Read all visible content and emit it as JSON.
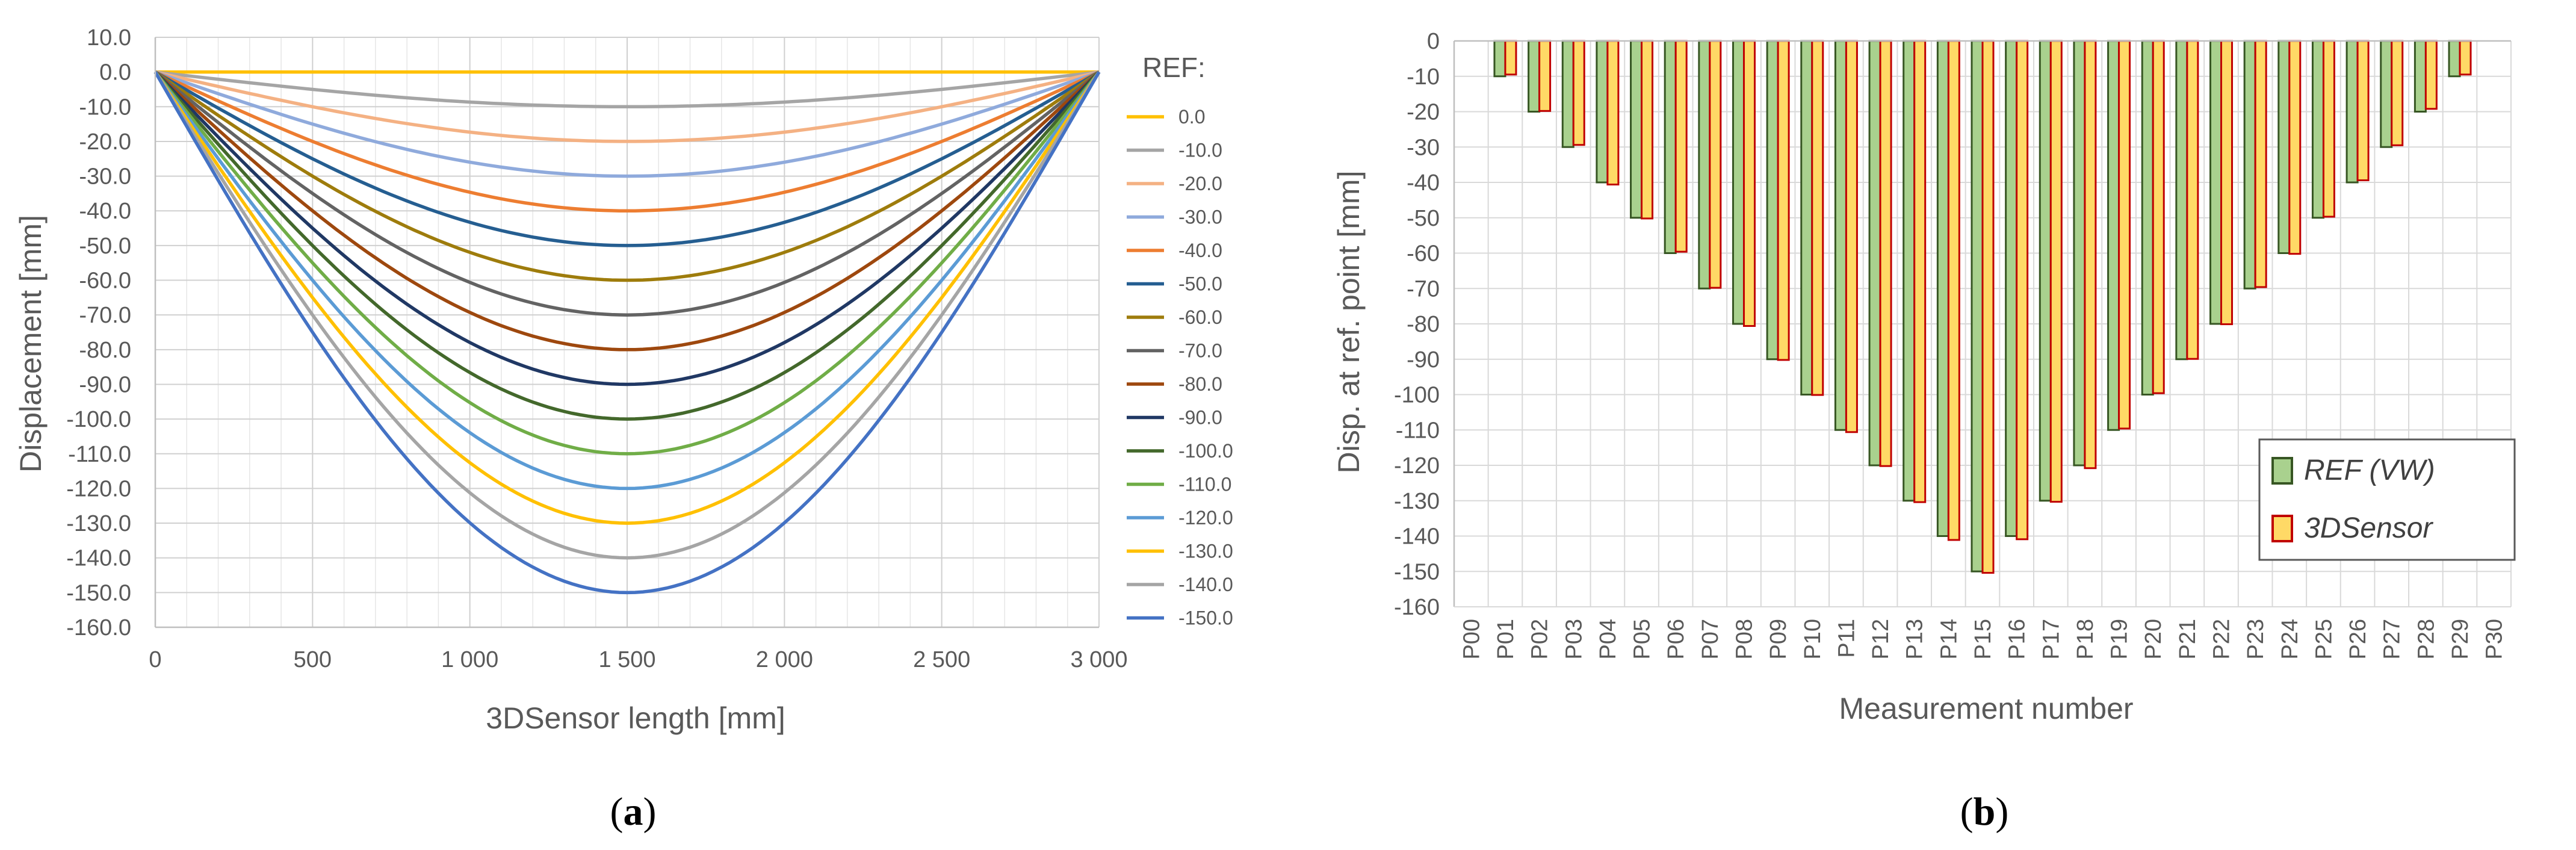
{
  "chart_data": [
    {
      "type": "line",
      "panel_label": {
        "open": "(",
        "letter": "a",
        "close": ")"
      },
      "xlabel": "3DSensor length [mm]",
      "ylabel": "Displacement  [mm]",
      "xlim": [
        0,
        3000
      ],
      "ylim": [
        -160,
        10
      ],
      "x_ticks": [
        0,
        500,
        1000,
        1500,
        2000,
        2500,
        3000
      ],
      "x_tick_labels": [
        "0",
        "500",
        "1 000",
        "1 500",
        "2 000",
        "2 500",
        "3 000"
      ],
      "y_ticks": [
        10,
        0,
        -10,
        -20,
        -30,
        -40,
        -50,
        -60,
        -70,
        -80,
        -90,
        -100,
        -110,
        -120,
        -130,
        -140,
        -150,
        -160
      ],
      "y_tick_labels": [
        "10.0",
        "0.0",
        "-10.0",
        "-20.0",
        "-30.0",
        "-40.0",
        "-50.0",
        "-60.0",
        "-70.0",
        "-80.0",
        "-90.0",
        "-100.0",
        "-110.0",
        "-120.0",
        "-130.0",
        "-140.0",
        "-150.0",
        "-160.0"
      ],
      "grid": true,
      "legend_title": "REF:",
      "legend_position": "right",
      "series": [
        {
          "name": "0.0",
          "min_value": 0,
          "color": "#FFC000"
        },
        {
          "name": "-10.0",
          "min_value": -10,
          "color": "#A5A5A5"
        },
        {
          "name": "-20.0",
          "min_value": -20,
          "color": "#F4B183"
        },
        {
          "name": "-30.0",
          "min_value": -30,
          "color": "#8FAADC"
        },
        {
          "name": "-40.0",
          "min_value": -40,
          "color": "#ED7D31"
        },
        {
          "name": "-50.0",
          "min_value": -50,
          "color": "#255E91"
        },
        {
          "name": "-60.0",
          "min_value": -60,
          "color": "#9E7C0C"
        },
        {
          "name": "-70.0",
          "min_value": -70,
          "color": "#636363"
        },
        {
          "name": "-80.0",
          "min_value": -80,
          "color": "#9E480E"
        },
        {
          "name": "-90.0",
          "min_value": -90,
          "color": "#203864"
        },
        {
          "name": "-100.0",
          "min_value": -100,
          "color": "#43682B"
        },
        {
          "name": "-110.0",
          "min_value": -110,
          "color": "#70AD47"
        },
        {
          "name": "-120.0",
          "min_value": -120,
          "color": "#5B9BD5"
        },
        {
          "name": "-130.0",
          "min_value": -130,
          "color": "#FFC000"
        },
        {
          "name": "-140.0",
          "min_value": -140,
          "color": "#A5A5A5"
        },
        {
          "name": "-150.0",
          "min_value": -150,
          "color": "#4472C4"
        }
      ]
    },
    {
      "type": "bar",
      "panel_label": {
        "open": "(",
        "letter": "b",
        "close": ")"
      },
      "xlabel": "Measurement number",
      "ylabel": "Disp. at ref. point [mm]",
      "ylim": [
        -160,
        0
      ],
      "y_ticks": [
        0,
        -10,
        -20,
        -30,
        -40,
        -50,
        -60,
        -70,
        -80,
        -90,
        -100,
        -110,
        -120,
        -130,
        -140,
        -150,
        -160
      ],
      "y_tick_labels": [
        "0",
        "-10",
        "-20",
        "-30",
        "-40",
        "-50",
        "-60",
        "-70",
        "-80",
        "-90",
        "-100",
        "-110",
        "-120",
        "-130",
        "-140",
        "-150",
        "-160"
      ],
      "grid": true,
      "legend_position": "bottom-right",
      "categories": [
        "P00",
        "P01",
        "P02",
        "P03",
        "P04",
        "P05",
        "P06",
        "P07",
        "P08",
        "P09",
        "P10",
        "P11",
        "P12",
        "P13",
        "P14",
        "P15",
        "P16",
        "P17",
        "P18",
        "P19",
        "P20",
        "P21",
        "P22",
        "P23",
        "P24",
        "P25",
        "P26",
        "P27",
        "P28",
        "P29",
        "P30"
      ],
      "series": [
        {
          "name": "REF (VW)",
          "fill": "#A9D18E",
          "stroke": "#375623",
          "values": [
            0,
            -10,
            -20,
            -30,
            -40,
            -50,
            -60,
            -70,
            -80,
            -90,
            -100,
            -110,
            -120,
            -130,
            -140,
            -150,
            -140,
            -130,
            -120,
            -110,
            -100,
            -90,
            -80,
            -70,
            -60,
            -50,
            -40,
            -30,
            -20,
            -10,
            0
          ]
        },
        {
          "name": "3DSensor",
          "fill": "#FFD966",
          "stroke": "#C00000",
          "values": [
            0,
            -9.5,
            -19.8,
            -29.4,
            -40.6,
            -50.2,
            -59.6,
            -69.8,
            -80.6,
            -90.2,
            -100.1,
            -110.6,
            -120.2,
            -130.4,
            -141.1,
            -150.4,
            -140.9,
            -130.3,
            -120.8,
            -109.6,
            -99.6,
            -89.9,
            -80.1,
            -69.6,
            -60.2,
            -49.7,
            -39.4,
            -29.5,
            -19.2,
            -9.5,
            0
          ]
        }
      ]
    }
  ]
}
